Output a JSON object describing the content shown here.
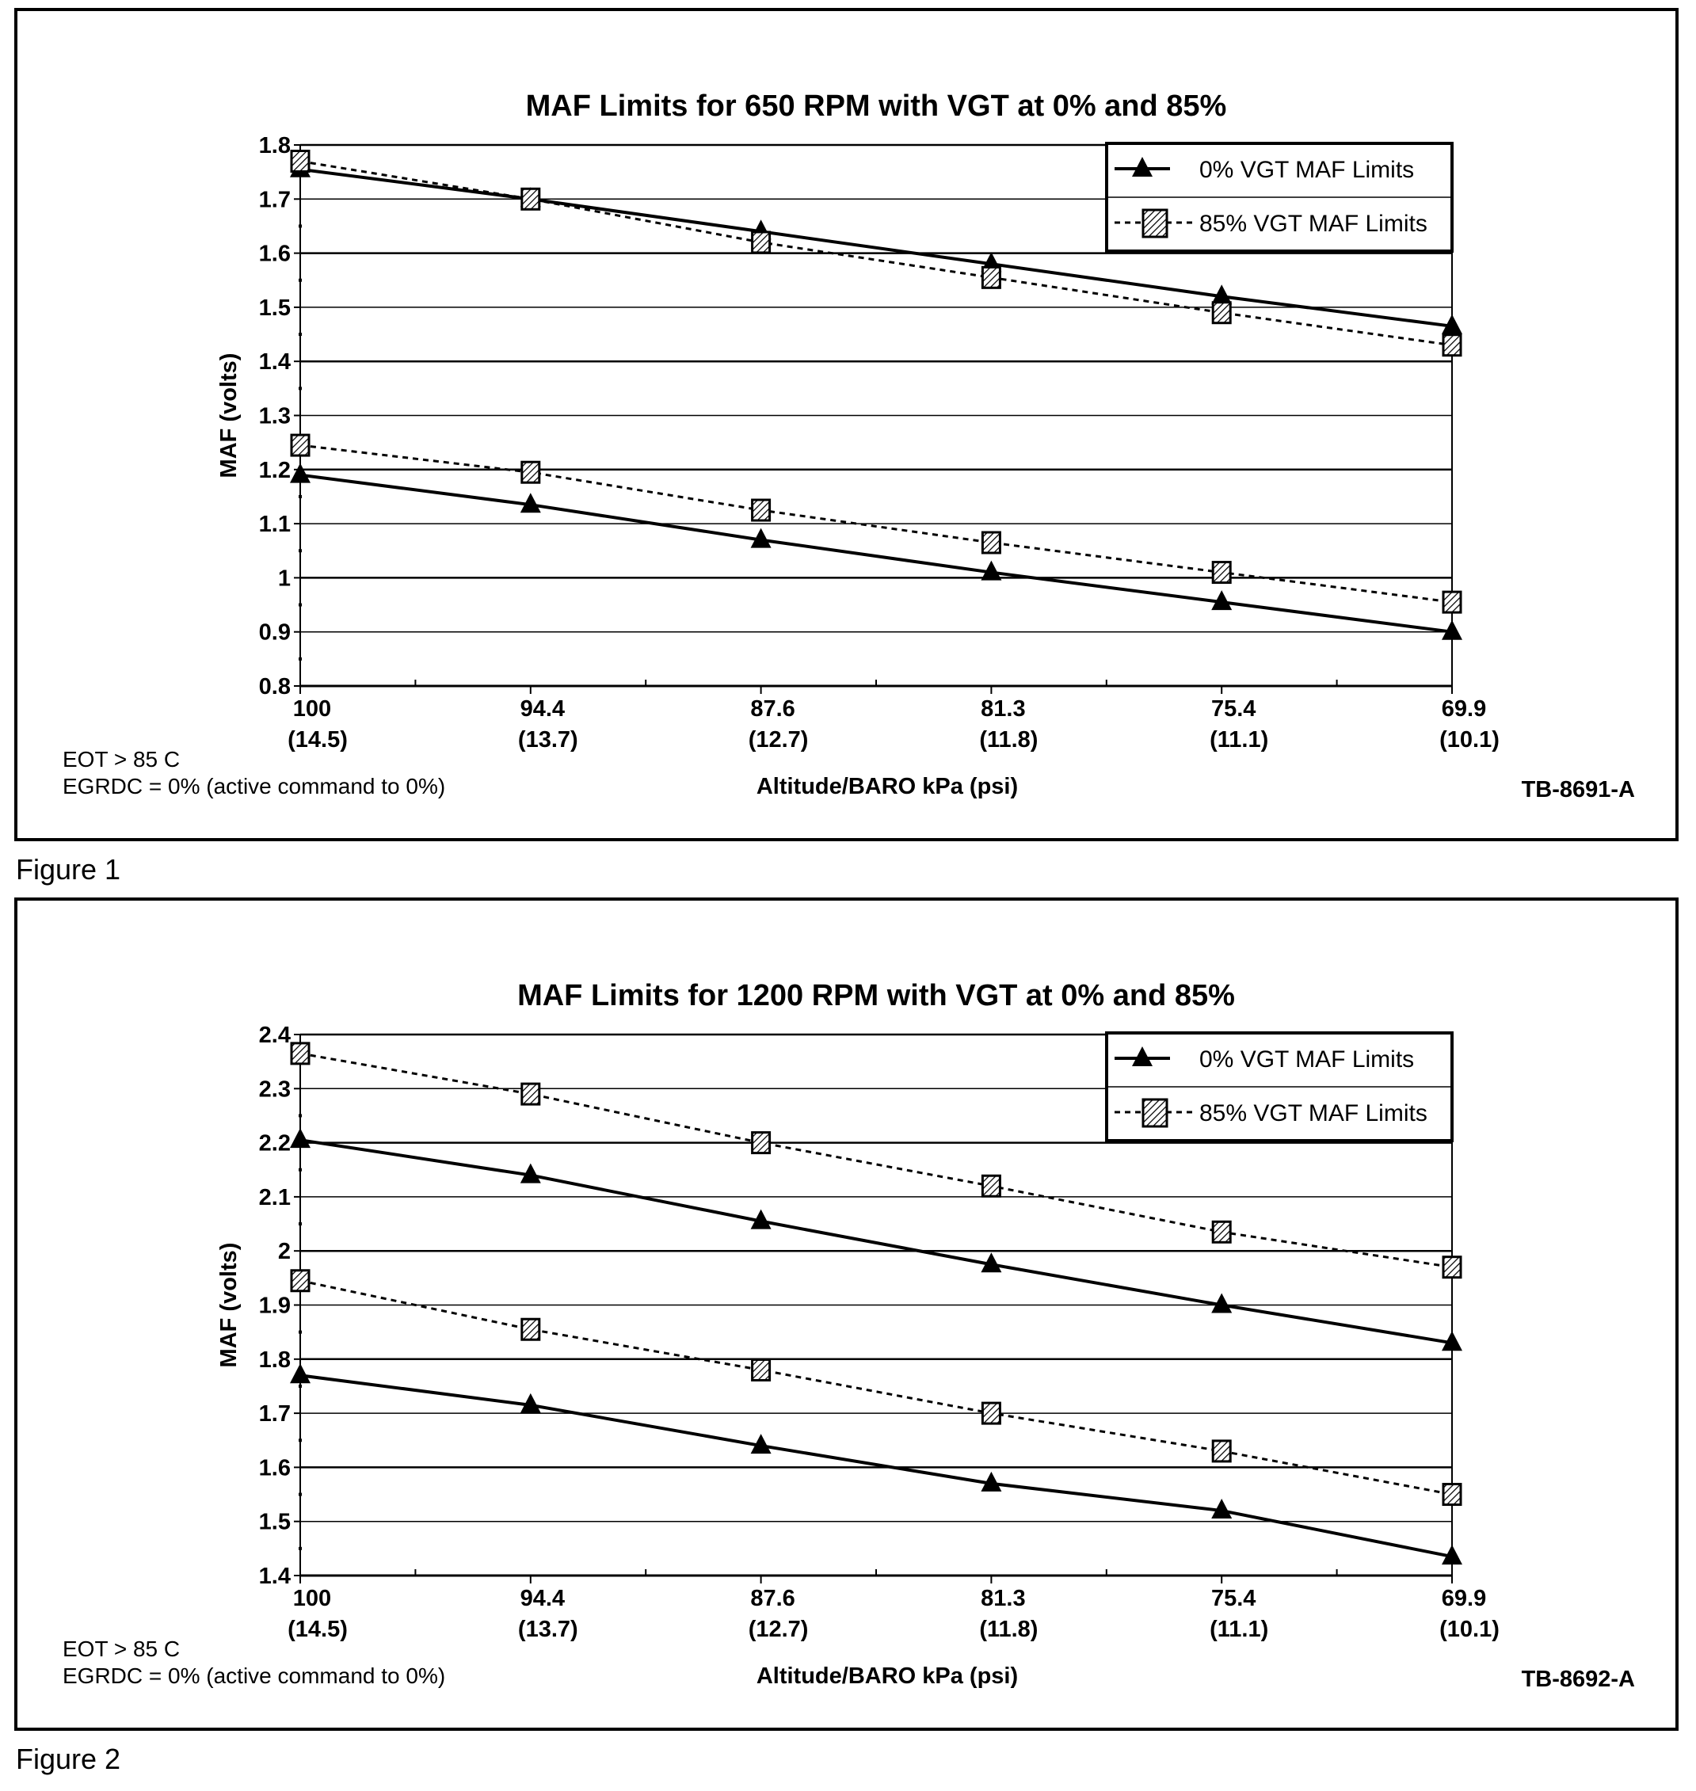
{
  "figure_captions": [
    "Figure 1",
    "Figure 2"
  ],
  "chart_data": [
    {
      "type": "line",
      "title": "MAF Limits for 650 RPM with VGT at 0% and 85%",
      "xlabel": "Altitude/BARO kPa (psi)",
      "ylabel": "MAF (volts)",
      "categories": [
        "100",
        "94.4",
        "87.6",
        "81.3",
        "75.4",
        "69.9"
      ],
      "categories_secondary": [
        "(14.5)",
        "(13.7)",
        "(12.7)",
        "(11.8)",
        "(11.1)",
        "(10.1)"
      ],
      "ylim": [
        0.8,
        1.8
      ],
      "yticks": [
        "0.8",
        "0.9",
        "1",
        "1.1",
        "1.2",
        "1.3",
        "1.4",
        "1.5",
        "1.6",
        "1.7",
        "1.8"
      ],
      "grid": true,
      "legend_position": "top-right",
      "legend": [
        "0% VGT MAF Limits",
        "85% VGT MAF Limits"
      ],
      "series": [
        {
          "name": "0% VGT MAF Limits",
          "style": "solid-triangle",
          "values": [
            1.755,
            1.7,
            1.64,
            1.58,
            1.52,
            1.465
          ]
        },
        {
          "name": "85% VGT MAF Limits",
          "style": "dotted-hatched-square",
          "values": [
            1.77,
            1.7,
            1.62,
            1.555,
            1.49,
            1.43
          ]
        },
        {
          "name": "0% VGT MAF Limits",
          "style": "solid-triangle",
          "values": [
            1.19,
            1.135,
            1.07,
            1.01,
            0.955,
            0.9
          ]
        },
        {
          "name": "85% VGT MAF Limits",
          "style": "dotted-hatched-square",
          "values": [
            1.245,
            1.195,
            1.125,
            1.065,
            1.01,
            0.955
          ]
        }
      ],
      "notes": [
        "EOT > 85 C",
        "EGRDC = 0% (active command to 0%)"
      ],
      "code": "TB-8691-A"
    },
    {
      "type": "line",
      "title": "MAF Limits for 1200 RPM with VGT at 0% and 85%",
      "xlabel": "Altitude/BARO kPa (psi)",
      "ylabel": "MAF (volts)",
      "categories": [
        "100",
        "94.4",
        "87.6",
        "81.3",
        "75.4",
        "69.9"
      ],
      "categories_secondary": [
        "(14.5)",
        "(13.7)",
        "(12.7)",
        "(11.8)",
        "(11.1)",
        "(10.1)"
      ],
      "ylim": [
        1.4,
        2.4
      ],
      "yticks": [
        "1.4",
        "1.5",
        "1.6",
        "1.7",
        "1.8",
        "1.9",
        "2",
        "2.1",
        "2.2",
        "2.3",
        "2.4"
      ],
      "grid": true,
      "legend_position": "top-right",
      "legend": [
        "0% VGT MAF Limits",
        "85% VGT MAF Limits"
      ],
      "series": [
        {
          "name": "85% VGT MAF Limits",
          "style": "dotted-hatched-square",
          "values": [
            2.365,
            2.29,
            2.2,
            2.12,
            2.035,
            1.97
          ]
        },
        {
          "name": "0% VGT MAF Limits",
          "style": "solid-triangle",
          "values": [
            2.205,
            2.14,
            2.055,
            1.975,
            1.9,
            1.83
          ]
        },
        {
          "name": "85% VGT MAF Limits",
          "style": "dotted-hatched-square",
          "values": [
            1.945,
            1.855,
            1.78,
            1.7,
            1.63,
            1.55
          ]
        },
        {
          "name": "0% VGT MAF Limits",
          "style": "solid-triangle",
          "values": [
            1.77,
            1.715,
            1.64,
            1.57,
            1.52,
            1.435
          ]
        }
      ],
      "notes": [
        "EOT > 85 C",
        "EGRDC = 0% (active command to 0%)"
      ],
      "code": "TB-8692-A"
    }
  ]
}
